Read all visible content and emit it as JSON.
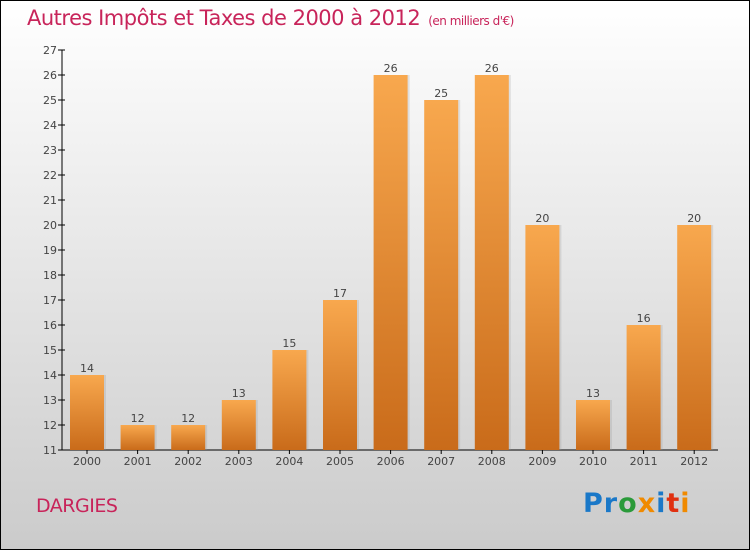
{
  "title": "Autres Impôts et Taxes de 2000 à 2012",
  "subtitle": "(en milliers d'€)",
  "city": "DARGIES",
  "logo": "Proxiti",
  "colors": {
    "bar_top": "#f8a84e",
    "bar_bottom": "#c96b1a",
    "title": "#c8245a"
  },
  "chart_data": {
    "type": "bar",
    "title": "Autres Impôts et Taxes de 2000 à 2012",
    "ylabel": "(en milliers d'€)",
    "categories": [
      "2000",
      "2001",
      "2002",
      "2003",
      "2004",
      "2005",
      "2006",
      "2007",
      "2008",
      "2009",
      "2010",
      "2011",
      "2012"
    ],
    "values": [
      14,
      12,
      12,
      13,
      15,
      17,
      26,
      25,
      26,
      20,
      13,
      16,
      20
    ],
    "ylim": [
      11,
      27
    ],
    "yticks": [
      11,
      12,
      13,
      14,
      15,
      16,
      17,
      18,
      19,
      20,
      21,
      22,
      23,
      24,
      25,
      26,
      27
    ]
  }
}
